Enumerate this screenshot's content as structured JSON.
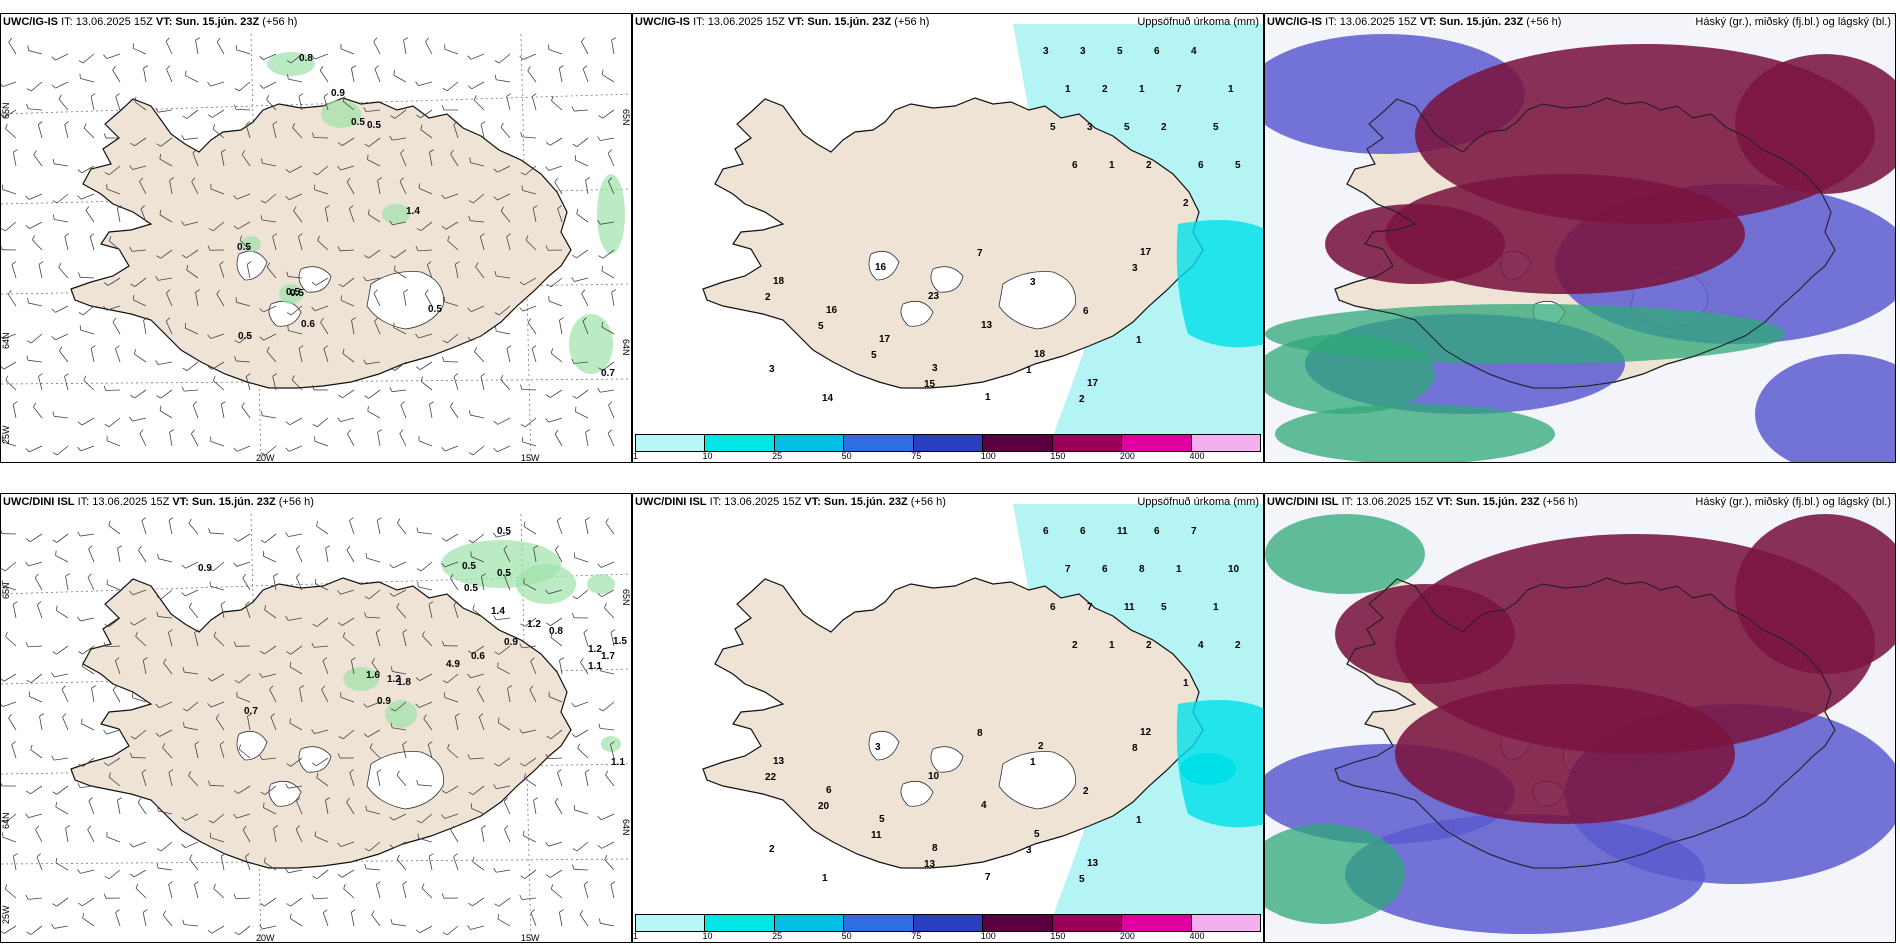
{
  "rows": [
    {
      "model": "UWC/IG-IS",
      "it_text": "IT: 13.06.2025 15Z",
      "vt_label": "VT:",
      "vt_value": "Sun. 15.jún. 23Z",
      "lead": "(+56 h)",
      "wind_labels": [
        "0.8",
        "0.9",
        "0.5",
        "0.5",
        "1.4",
        "0.5",
        "0.5",
        "0.5",
        "0.5",
        "0.5",
        "0.6",
        "0.7"
      ],
      "precip_labels": [
        "3",
        "3",
        "5",
        "6",
        "4",
        "1",
        "1",
        "2",
        "1",
        "7",
        "5",
        "5",
        "3",
        "5",
        "2",
        "6",
        "5",
        "6",
        "1",
        "2",
        "2",
        "1",
        "2",
        "3",
        "2",
        "5",
        "5",
        "15",
        "7",
        "3",
        "6",
        "1",
        "3",
        "14",
        "16",
        "23",
        "13",
        "18",
        "17",
        "17",
        "18",
        "16",
        "17",
        "3",
        "1"
      ],
      "lat_labels": [
        "65N",
        "64N"
      ],
      "lon_labels": [
        "20W",
        "15W",
        "25W"
      ]
    },
    {
      "model": "UWC/DINI ISL",
      "it_text": "IT: 13.06.2025 15Z",
      "vt_label": "VT:",
      "vt_value": "Sun. 15.jún. 23Z",
      "lead": "(+56 h)",
      "wind_labels": [
        "0.5",
        "0.9",
        "0.5",
        "0.5",
        "0.5",
        "1.4",
        "1.2",
        "0.9",
        "0.8",
        "1.2",
        "1.5",
        "1.7",
        "0.6",
        "1.1",
        "1.6",
        "1.2",
        "1.8",
        "0.9",
        "4.9",
        "0.7",
        "1.1"
      ],
      "precip_labels": [
        "6",
        "6",
        "11",
        "6",
        "7",
        "10",
        "7",
        "6",
        "8",
        "1",
        "1",
        "6",
        "7",
        "11",
        "5",
        "4",
        "2",
        "2",
        "1",
        "2",
        "1",
        "3",
        "5",
        "8",
        "22",
        "20",
        "11",
        "13",
        "8",
        "1",
        "2",
        "1",
        "2",
        "1",
        "3",
        "10",
        "4",
        "5",
        "13",
        "12",
        "13",
        "6",
        "5",
        "8",
        "7",
        "2"
      ],
      "lat_labels": [
        "65N",
        "64N"
      ],
      "lon_labels": [
        "20W",
        "15W",
        "25W"
      ]
    }
  ],
  "precip_title": "Uppsöfnuð úrkoma (mm)",
  "cloud_title": "Háský (gr.), miðský (fj.bl.) og lágský (bl.)",
  "colorbar": {
    "ticks": [
      "1",
      "10",
      "25",
      "50",
      "75",
      "100",
      "150",
      "200",
      "400"
    ],
    "colors": [
      "#b8f7f7",
      "#00e5e5",
      "#00bfe0",
      "#2f6ee0",
      "#2a3fc0",
      "#5a0040",
      "#9a005a",
      "#e000a0",
      "#f3b0ee"
    ]
  },
  "colors": {
    "land": "#efe3d6",
    "precip_light": "#b4f4f4",
    "precip_mid": "#00e0e8",
    "cloud_high": "#7a1540",
    "cloud_mid": "#5a5ad0",
    "cloud_low": "#2fa878"
  }
}
